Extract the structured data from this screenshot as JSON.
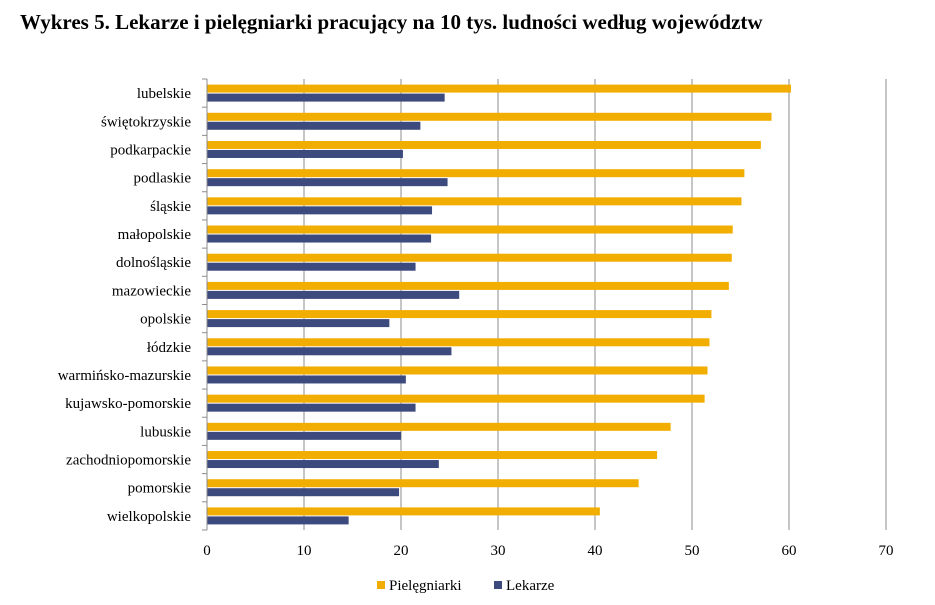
{
  "chart_data": {
    "type": "bar",
    "orientation": "horizontal",
    "title": "Wykres 5. Lekarze i pielęgniarki pracujący na 10 tys. ludności według województw",
    "categories": [
      "lubelskie",
      "świętokrzyskie",
      "podkarpackie",
      "podlaskie",
      "śląskie",
      "małopolskie",
      "dolnośląskie",
      "mazowieckie",
      "opolskie",
      "łódzkie",
      "warmińsko-mazurskie",
      "kujawsko-pomorskie",
      "lubuskie",
      "zachodniopomorskie",
      "pomorskie",
      "wielkopolskie"
    ],
    "series": [
      {
        "name": "Pielęgniarki",
        "color": "#F2AE00",
        "values": [
          60.2,
          58.2,
          57.1,
          55.4,
          55.1,
          54.2,
          54.1,
          53.8,
          52.0,
          51.8,
          51.6,
          51.3,
          47.8,
          46.4,
          44.5,
          40.5
        ]
      },
      {
        "name": "Lekarze",
        "color": "#3D4A7E",
        "values": [
          24.5,
          22.0,
          20.2,
          24.8,
          23.2,
          23.1,
          21.5,
          26.0,
          18.8,
          25.2,
          20.5,
          21.5,
          20.0,
          23.9,
          19.8,
          14.6
        ]
      }
    ],
    "xlim": [
      0,
      70
    ],
    "xticks": [
      0,
      10,
      20,
      30,
      40,
      50,
      60,
      70
    ],
    "xlabel": "",
    "ylabel": "",
    "grid": true,
    "legend": "bottom"
  }
}
